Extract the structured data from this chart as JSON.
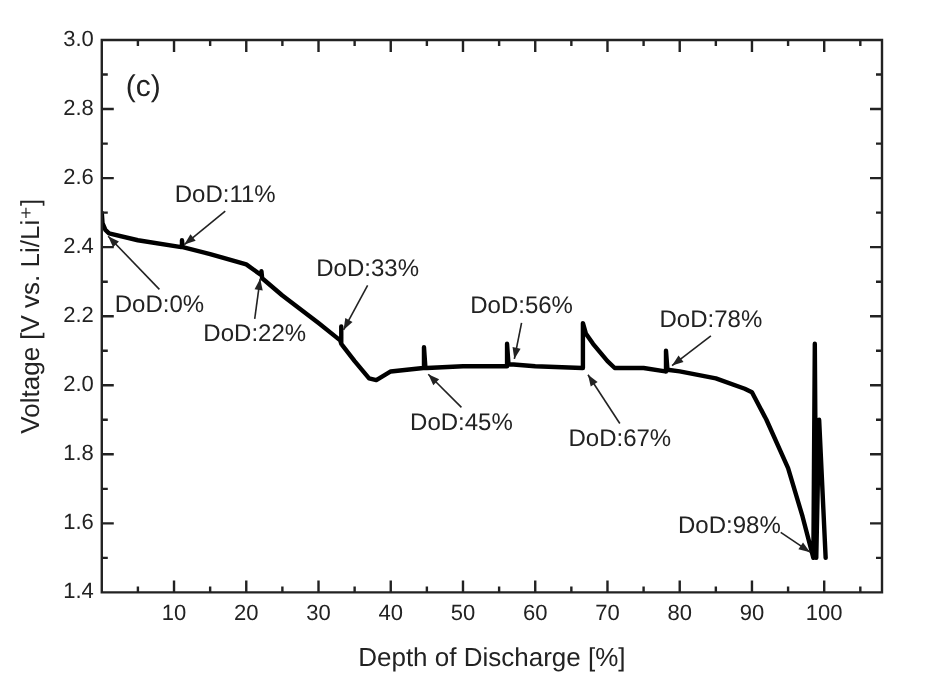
{
  "chart_data": {
    "type": "line",
    "xlabel": "Depth of Discharge [%]",
    "ylabel": "Voltage [V vs. Li/Li⁺]",
    "xlim": [
      0,
      108
    ],
    "ylim": [
      1.4,
      3.0
    ],
    "xticks": [
      10,
      20,
      30,
      40,
      50,
      60,
      70,
      80,
      90,
      100
    ],
    "yticks": [
      {
        "value": 1.4,
        "label": "1.4"
      },
      {
        "value": 1.6,
        "label": "1.6"
      },
      {
        "value": 1.8,
        "label": "1.8"
      },
      {
        "value": 2,
        "label": "2.0"
      },
      {
        "value": 2.2,
        "label": "2.2"
      },
      {
        "value": 2.4,
        "label": "2.4"
      },
      {
        "value": 2.6,
        "label": "2.6"
      },
      {
        "value": 2.8,
        "label": "2.8"
      },
      {
        "value": 3,
        "label": "3.0"
      }
    ],
    "grid": false,
    "legend": false,
    "marker": "none",
    "line_style": "solid",
    "series": [
      {
        "color": "#000000",
        "x": [
          0,
          0.1,
          0.5,
          1,
          5,
          11,
          11.1,
          11.2,
          15,
          20,
          22,
          22.1,
          22.2,
          25,
          30,
          33,
          33.1,
          33.2,
          35,
          37,
          38,
          40,
          44.5,
          44.6,
          44.8,
          45,
          50,
          56,
          56.1,
          56.3,
          57,
          60,
          66.5,
          66.6,
          67,
          68,
          70,
          71,
          75,
          78,
          78.1,
          78.3,
          80,
          85,
          89,
          90,
          92,
          95,
          97,
          98.5,
          98.7,
          98.9,
          99.3,
          100.2
        ],
        "values": [
          2.5,
          2.47,
          2.45,
          2.44,
          2.42,
          2.4,
          2.42,
          2.4,
          2.38,
          2.35,
          2.32,
          2.33,
          2.31,
          2.26,
          2.18,
          2.13,
          2.17,
          2.12,
          2.07,
          2.02,
          2.015,
          2.04,
          2.05,
          2.11,
          2.05,
          2.05,
          2.055,
          2.055,
          2.12,
          2.06,
          2.06,
          2.055,
          2.05,
          2.18,
          2.15,
          2.12,
          2.07,
          2.05,
          2.05,
          2.04,
          2.1,
          2.045,
          2.04,
          2.02,
          1.99,
          1.98,
          1.9,
          1.76,
          1.62,
          1.5,
          2.12,
          1.5,
          1.9,
          1.5
        ]
      }
    ],
    "annotations": [
      "(c)",
      {
        "text": "DoD:0%",
        "x": 0.5,
        "y": 2.44
      },
      {
        "text": "DoD:11%",
        "x": 11,
        "y": 2.4
      },
      {
        "text": "DoD:22%",
        "x": 22,
        "y": 2.32
      },
      {
        "text": "DoD:33%",
        "x": 33.2,
        "y": 2.15
      },
      {
        "text": "DoD:45%",
        "x": 44.8,
        "y": 2.04
      },
      {
        "text": "DoD:56%",
        "x": 57,
        "y": 2.065
      },
      {
        "text": "DoD:67%",
        "x": 67,
        "y": 2.04
      },
      {
        "text": "DoD:78%",
        "x": 78.5,
        "y": 2.05
      },
      {
        "text": "DoD:98%",
        "x": 98.5,
        "y": 1.51
      }
    ]
  }
}
